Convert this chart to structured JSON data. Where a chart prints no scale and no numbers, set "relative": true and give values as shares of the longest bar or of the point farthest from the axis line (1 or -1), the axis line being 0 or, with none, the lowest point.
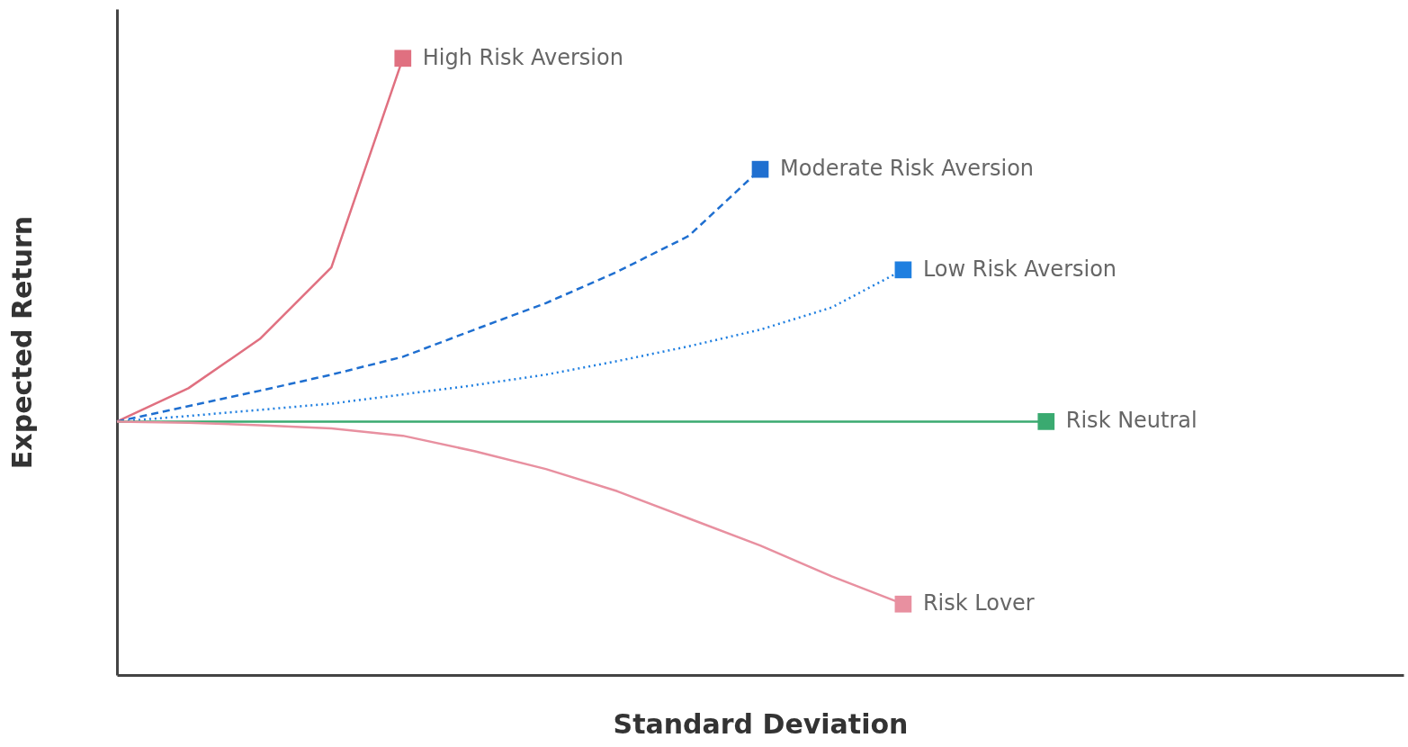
{
  "chart_data": {
    "type": "line",
    "relative": true,
    "xlabel": "Standard Deviation",
    "ylabel": "Expected Return",
    "tick_labels": false,
    "grid": false,
    "categories": [
      null,
      null,
      null,
      null,
      null,
      null,
      null,
      null,
      null,
      null,
      null,
      null,
      null,
      null,
      null,
      null,
      null,
      null,
      null
    ],
    "series": [
      {
        "name": "High Risk Aversion",
        "color": "#e07080",
        "line_style": "solid",
        "values": [
          0.411,
          0.465,
          0.545,
          0.661,
          1,
          null,
          null,
          null,
          null,
          null,
          null,
          null,
          null,
          null,
          null,
          null,
          null,
          null,
          null
        ]
      },
      {
        "name": "Moderate Risk Aversion",
        "color": "#1f6fd0",
        "line_style": "dashed",
        "values": [
          0.411,
          0.436,
          0.461,
          0.487,
          0.516,
          0.56,
          0.603,
          0.654,
          0.712,
          0.82,
          null,
          null,
          null,
          null,
          null,
          null,
          null,
          null,
          null
        ]
      },
      {
        "name": "Low Risk Aversion",
        "color": "#1f7fe0",
        "line_style": "dotted",
        "values": [
          0.411,
          0.42,
          0.43,
          0.44,
          0.455,
          0.47,
          0.487,
          0.509,
          0.533,
          0.56,
          0.596,
          0.657,
          null,
          null,
          null,
          null,
          null,
          null,
          null
        ]
      },
      {
        "name": "Risk Neutral",
        "color": "#3aaa70",
        "line_style": "solid",
        "values": [
          0.411,
          0.411,
          0.411,
          0.411,
          0.411,
          0.411,
          0.411,
          0.411,
          0.411,
          0.411,
          0.411,
          0.411,
          0.411,
          0.411,
          null,
          null,
          null,
          null,
          null
        ]
      },
      {
        "name": "Risk Lover",
        "color": "#e890a0",
        "line_style": "solid",
        "values": [
          0.411,
          0.409,
          0.405,
          0.4,
          0.388,
          0.363,
          0.334,
          0.298,
          0.254,
          0.21,
          0.16,
          0.115,
          null,
          null,
          null,
          null,
          null,
          null,
          null
        ]
      }
    ]
  }
}
